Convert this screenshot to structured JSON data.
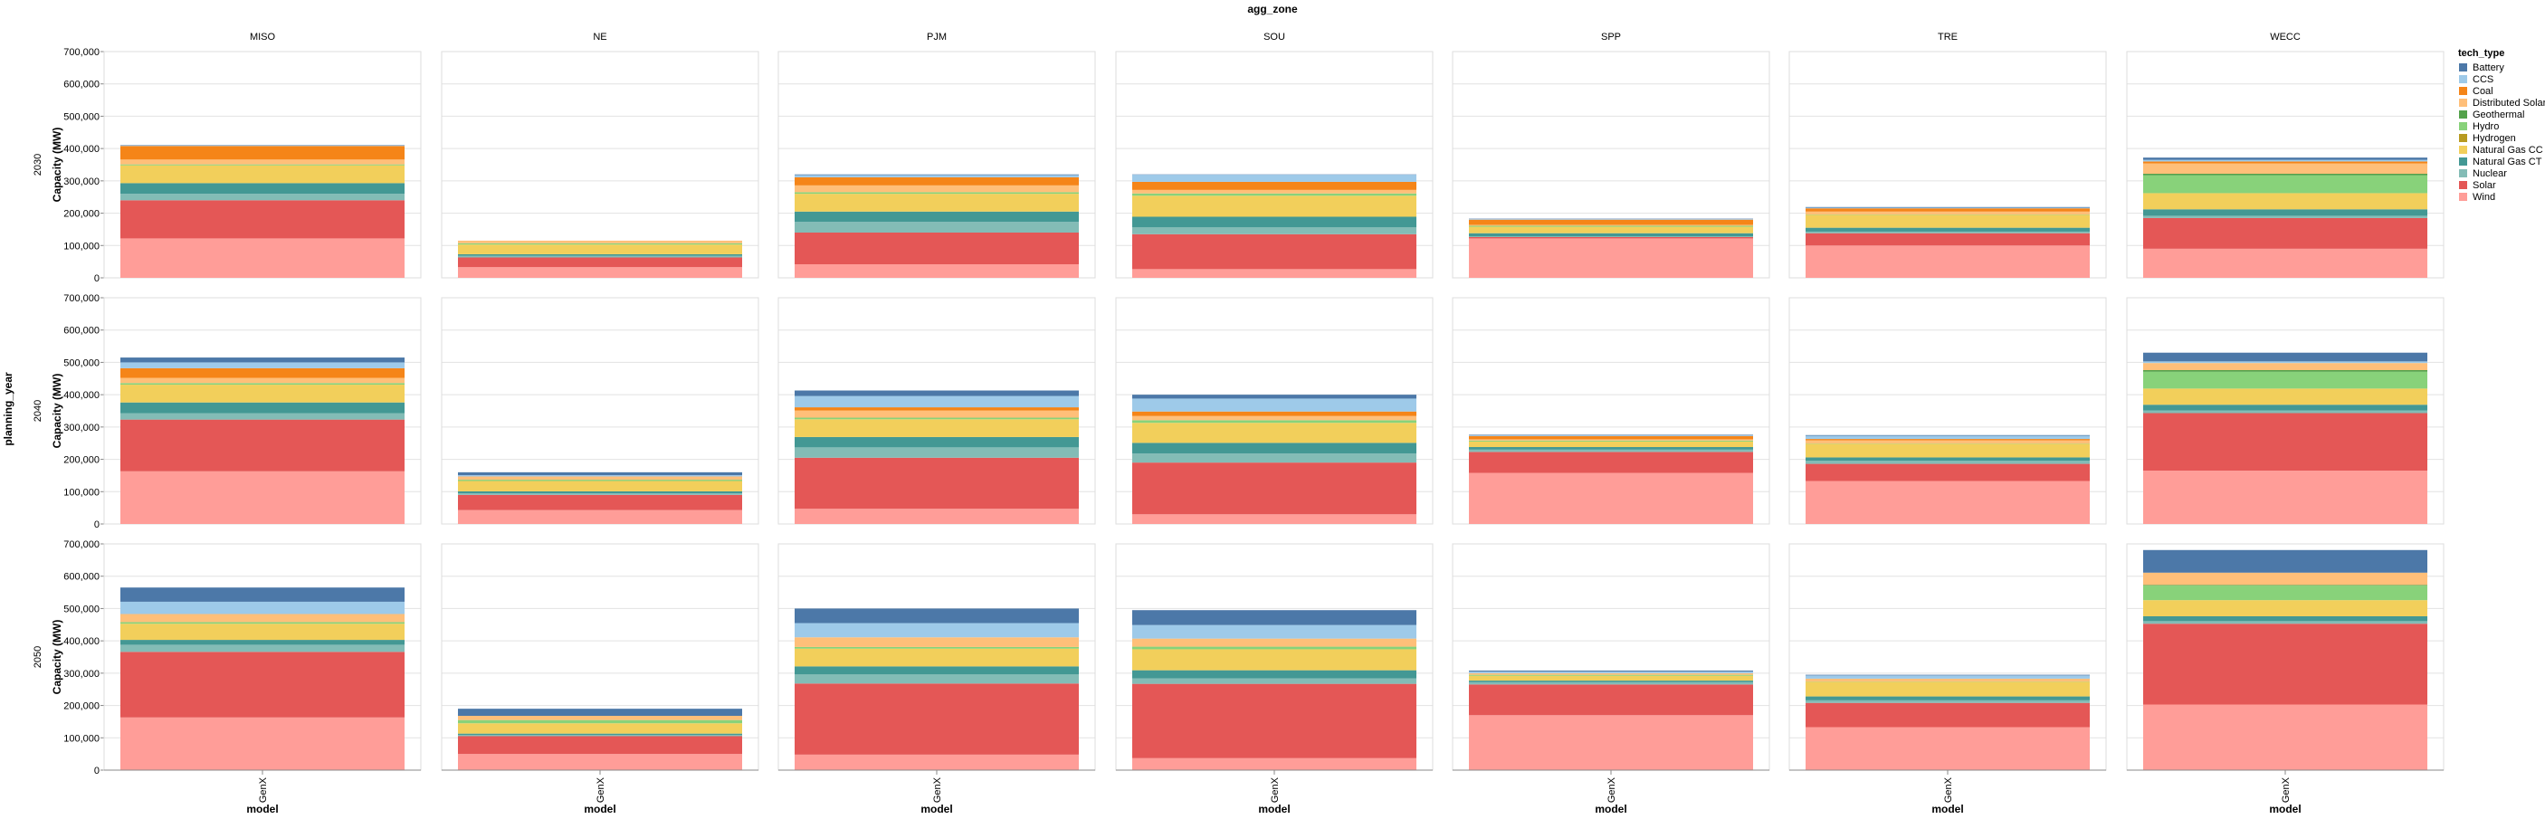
{
  "chart_data": {
    "type": "bar",
    "stacked": true,
    "title": "agg_zone",
    "row_title": "planning_year",
    "xlabel": "model",
    "ylabel": "Capacity (MW)",
    "ylim": [
      0,
      700000
    ],
    "yticks": [
      "0",
      "100,000",
      "200,000",
      "300,000",
      "400,000",
      "500,000",
      "600,000",
      "700,000"
    ],
    "x_category": "GenX",
    "columns": [
      "MISO",
      "NE",
      "PJM",
      "SOU",
      "SPP",
      "TRE",
      "WECC"
    ],
    "rows": [
      "2030",
      "2040",
      "2050"
    ],
    "legend": {
      "title": "tech_type",
      "placement": "right",
      "items": [
        {
          "name": "Battery",
          "color": "#4c78a8"
        },
        {
          "name": "CCS",
          "color": "#9ecae9"
        },
        {
          "name": "Coal",
          "color": "#f58518"
        },
        {
          "name": "Distributed Solar",
          "color": "#ffbf79"
        },
        {
          "name": "Geothermal",
          "color": "#54a24b"
        },
        {
          "name": "Hydro",
          "color": "#88d27a"
        },
        {
          "name": "Hydrogen",
          "color": "#b79a20"
        },
        {
          "name": "Natural Gas CC",
          "color": "#f2cf5b"
        },
        {
          "name": "Natural Gas CT",
          "color": "#439894"
        },
        {
          "name": "Nuclear",
          "color": "#83bcb6"
        },
        {
          "name": "Solar",
          "color": "#e45756"
        },
        {
          "name": "Wind",
          "color": "#ff9d98"
        }
      ]
    },
    "stack_order": [
      "Wind",
      "Solar",
      "Nuclear",
      "Natural Gas CT",
      "Natural Gas CC",
      "Hydrogen",
      "Hydro",
      "Geothermal",
      "Distributed Solar",
      "Coal",
      "CCS",
      "Battery"
    ],
    "panels": [
      {
        "row": "2030",
        "zone": "MISO",
        "values": {
          "Wind": 122000,
          "Solar": 118000,
          "Nuclear": 20000,
          "Natural Gas CT": 33000,
          "Natural Gas CC": 55000,
          "Hydrogen": 0,
          "Hydro": 3000,
          "Geothermal": 0,
          "Distributed Solar": 15000,
          "Coal": 42000,
          "CCS": 2000,
          "Battery": 1000
        }
      },
      {
        "row": "2030",
        "zone": "NE",
        "values": {
          "Wind": 33000,
          "Solar": 30000,
          "Nuclear": 5000,
          "Natural Gas CT": 5000,
          "Natural Gas CC": 30000,
          "Hydrogen": 0,
          "Hydro": 4000,
          "Geothermal": 0,
          "Distributed Solar": 8000,
          "Coal": 0,
          "CCS": 0,
          "Battery": 0
        }
      },
      {
        "row": "2030",
        "zone": "PJM",
        "values": {
          "Wind": 42000,
          "Solar": 98000,
          "Nuclear": 33000,
          "Natural Gas CT": 32000,
          "Natural Gas CC": 55000,
          "Hydrogen": 0,
          "Hydro": 5000,
          "Geothermal": 0,
          "Distributed Solar": 21000,
          "Coal": 25000,
          "CCS": 7000,
          "Battery": 2000
        }
      },
      {
        "row": "2030",
        "zone": "SOU",
        "values": {
          "Wind": 27000,
          "Solar": 108000,
          "Nuclear": 21000,
          "Natural Gas CT": 33000,
          "Natural Gas CC": 65000,
          "Hydrogen": 0,
          "Hydro": 7000,
          "Geothermal": 0,
          "Distributed Solar": 11000,
          "Coal": 25000,
          "CCS": 22000,
          "Battery": 1000
        }
      },
      {
        "row": "2030",
        "zone": "SPP",
        "values": {
          "Wind": 122000,
          "Solar": 4000,
          "Nuclear": 2000,
          "Natural Gas CT": 10000,
          "Natural Gas CC": 20000,
          "Hydrogen": 0,
          "Hydro": 3000,
          "Geothermal": 0,
          "Distributed Solar": 3000,
          "Coal": 16000,
          "CCS": 2000,
          "Battery": 1000
        }
      },
      {
        "row": "2030",
        "zone": "TRE",
        "values": {
          "Wind": 100000,
          "Solar": 38000,
          "Nuclear": 5000,
          "Natural Gas CT": 12000,
          "Natural Gas CC": 40000,
          "Hydrogen": 0,
          "Hydro": 1000,
          "Geothermal": 0,
          "Distributed Solar": 9000,
          "Coal": 10000,
          "CCS": 2000,
          "Battery": 2000
        }
      },
      {
        "row": "2030",
        "zone": "WECC",
        "values": {
          "Wind": 90000,
          "Solar": 95000,
          "Nuclear": 7000,
          "Natural Gas CT": 20000,
          "Natural Gas CC": 50000,
          "Hydrogen": 0,
          "Hydro": 55000,
          "Geothermal": 5000,
          "Distributed Solar": 32000,
          "Coal": 6000,
          "CCS": 5000,
          "Battery": 7000
        }
      },
      {
        "row": "2040",
        "zone": "MISO",
        "values": {
          "Wind": 163000,
          "Solar": 160000,
          "Nuclear": 20000,
          "Natural Gas CT": 33000,
          "Natural Gas CC": 55000,
          "Hydrogen": 0,
          "Hydro": 5000,
          "Geothermal": 0,
          "Distributed Solar": 16000,
          "Coal": 30000,
          "CCS": 18000,
          "Battery": 15000
        }
      },
      {
        "row": "2040",
        "zone": "NE",
        "values": {
          "Wind": 43000,
          "Solar": 47000,
          "Nuclear": 5000,
          "Natural Gas CT": 6000,
          "Natural Gas CC": 32000,
          "Hydrogen": 0,
          "Hydro": 4000,
          "Geothermal": 0,
          "Distributed Solar": 10000,
          "Coal": 0,
          "CCS": 4000,
          "Battery": 9000
        }
      },
      {
        "row": "2040",
        "zone": "PJM",
        "values": {
          "Wind": 47000,
          "Solar": 158000,
          "Nuclear": 32000,
          "Natural Gas CT": 32000,
          "Natural Gas CC": 55000,
          "Hydrogen": 0,
          "Hydro": 5000,
          "Geothermal": 0,
          "Distributed Solar": 22000,
          "Coal": 10000,
          "CCS": 35000,
          "Battery": 17000
        }
      },
      {
        "row": "2040",
        "zone": "SOU",
        "values": {
          "Wind": 30000,
          "Solar": 160000,
          "Nuclear": 28000,
          "Natural Gas CT": 33000,
          "Natural Gas CC": 62000,
          "Hydrogen": 0,
          "Hydro": 8000,
          "Geothermal": 0,
          "Distributed Solar": 13000,
          "Coal": 14000,
          "CCS": 40000,
          "Battery": 12000
        }
      },
      {
        "row": "2040",
        "zone": "SPP",
        "values": {
          "Wind": 158000,
          "Solar": 65000,
          "Nuclear": 7000,
          "Natural Gas CT": 8000,
          "Natural Gas CC": 17000,
          "Hydrogen": 0,
          "Hydro": 3000,
          "Geothermal": 0,
          "Distributed Solar": 4000,
          "Coal": 10000,
          "CCS": 2000,
          "Battery": 2000
        }
      },
      {
        "row": "2040",
        "zone": "TRE",
        "values": {
          "Wind": 133000,
          "Solar": 53000,
          "Nuclear": 10000,
          "Natural Gas CT": 10000,
          "Natural Gas CC": 42000,
          "Hydrogen": 0,
          "Hydro": 1000,
          "Geothermal": 0,
          "Distributed Solar": 10000,
          "Coal": 4000,
          "CCS": 10000,
          "Battery": 2000
        }
      },
      {
        "row": "2040",
        "zone": "WECC",
        "values": {
          "Wind": 165000,
          "Solar": 178000,
          "Nuclear": 8000,
          "Natural Gas CT": 18000,
          "Natural Gas CC": 50000,
          "Hydrogen": 0,
          "Hydro": 52000,
          "Geothermal": 5000,
          "Distributed Solar": 22000,
          "Coal": 0,
          "CCS": 5000,
          "Battery": 27000
        }
      },
      {
        "row": "2050",
        "zone": "MISO",
        "values": {
          "Wind": 163000,
          "Solar": 203000,
          "Nuclear": 22000,
          "Natural Gas CT": 15000,
          "Natural Gas CC": 50000,
          "Hydrogen": 0,
          "Hydro": 5000,
          "Geothermal": 0,
          "Distributed Solar": 25000,
          "Coal": 0,
          "CCS": 38000,
          "Battery": 44000
        }
      },
      {
        "row": "2050",
        "zone": "NE",
        "values": {
          "Wind": 50000,
          "Solar": 55000,
          "Nuclear": 4000,
          "Natural Gas CT": 4000,
          "Natural Gas CC": 32000,
          "Hydrogen": 0,
          "Hydro": 10000,
          "Geothermal": 0,
          "Distributed Solar": 13000,
          "Coal": 0,
          "CCS": 0,
          "Battery": 22000
        }
      },
      {
        "row": "2050",
        "zone": "PJM",
        "values": {
          "Wind": 48000,
          "Solar": 220000,
          "Nuclear": 28000,
          "Natural Gas CT": 25000,
          "Natural Gas CC": 55000,
          "Hydrogen": 0,
          "Hydro": 5000,
          "Geothermal": 0,
          "Distributed Solar": 30000,
          "Coal": 0,
          "CCS": 44000,
          "Battery": 45000
        }
      },
      {
        "row": "2050",
        "zone": "SOU",
        "values": {
          "Wind": 37000,
          "Solar": 230000,
          "Nuclear": 17000,
          "Natural Gas CT": 25000,
          "Natural Gas CC": 65000,
          "Hydrogen": 0,
          "Hydro": 8000,
          "Geothermal": 0,
          "Distributed Solar": 25000,
          "Coal": 0,
          "CCS": 42000,
          "Battery": 46000
        }
      },
      {
        "row": "2050",
        "zone": "SPP",
        "values": {
          "Wind": 170000,
          "Solar": 95000,
          "Nuclear": 7000,
          "Natural Gas CT": 5000,
          "Natural Gas CC": 15000,
          "Hydrogen": 0,
          "Hydro": 3000,
          "Geothermal": 0,
          "Distributed Solar": 5000,
          "Coal": 0,
          "CCS": 5000,
          "Battery": 3000
        }
      },
      {
        "row": "2050",
        "zone": "TRE",
        "values": {
          "Wind": 133000,
          "Solar": 75000,
          "Nuclear": 8000,
          "Natural Gas CT": 12000,
          "Natural Gas CC": 45000,
          "Hydrogen": 0,
          "Hydro": 1000,
          "Geothermal": 0,
          "Distributed Solar": 9000,
          "Coal": 0,
          "CCS": 10000,
          "Battery": 2000
        }
      },
      {
        "row": "2050",
        "zone": "WECC",
        "values": {
          "Wind": 203000,
          "Solar": 250000,
          "Nuclear": 8000,
          "Natural Gas CT": 15000,
          "Natural Gas CC": 50000,
          "Hydrogen": 0,
          "Hydro": 45000,
          "Geothermal": 2000,
          "Distributed Solar": 38000,
          "Coal": 0,
          "CCS": 0,
          "Battery": 70000
        }
      }
    ]
  }
}
